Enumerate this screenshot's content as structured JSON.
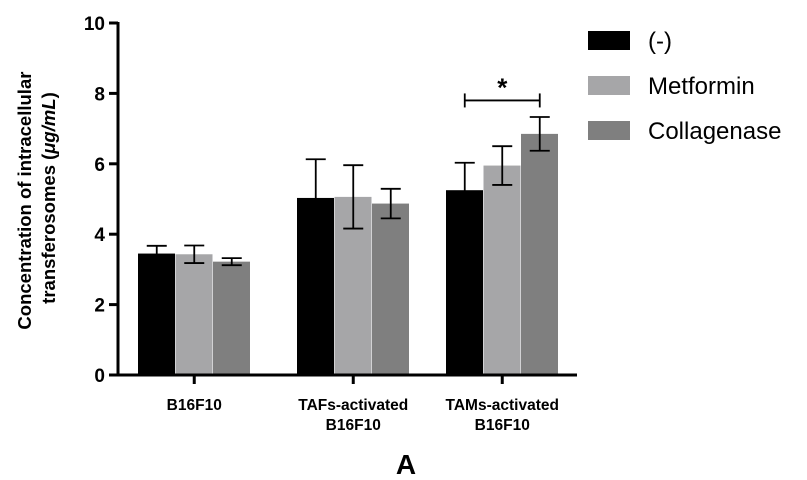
{
  "chart_data": {
    "type": "bar",
    "title": "",
    "ylabel_lines": [
      "Concentration of intracellular",
      "transferosomes (",
      "μg/mL",
      ")"
    ],
    "ylim": [
      0,
      10
    ],
    "yticks": [
      "0",
      "2",
      "4",
      "6",
      "8",
      "10"
    ],
    "categories": [
      [
        "B16F10"
      ],
      [
        "TAFs-activated",
        "B16F10"
      ],
      [
        "TAMs-activated",
        "B16F10"
      ]
    ],
    "series": [
      {
        "name": "(-)",
        "color": "#000000",
        "values": [
          3.45,
          5.03,
          5.25
        ],
        "errors": [
          0.22,
          1.1,
          0.78
        ]
      },
      {
        "name": "Metformin",
        "color": "#a6a6a8",
        "values": [
          3.43,
          5.06,
          5.95
        ],
        "errors": [
          0.25,
          0.9,
          0.55
        ]
      },
      {
        "name": "Collagenase",
        "color": "#7f7f7f",
        "values": [
          3.22,
          4.87,
          6.85
        ],
        "errors": [
          0.1,
          0.42,
          0.48
        ]
      }
    ],
    "significance": {
      "label": "*",
      "category_index": 2,
      "from_series": 0,
      "to_series": 2,
      "y": 7.8
    },
    "legend_position": "top-right",
    "panel_label": "A"
  }
}
